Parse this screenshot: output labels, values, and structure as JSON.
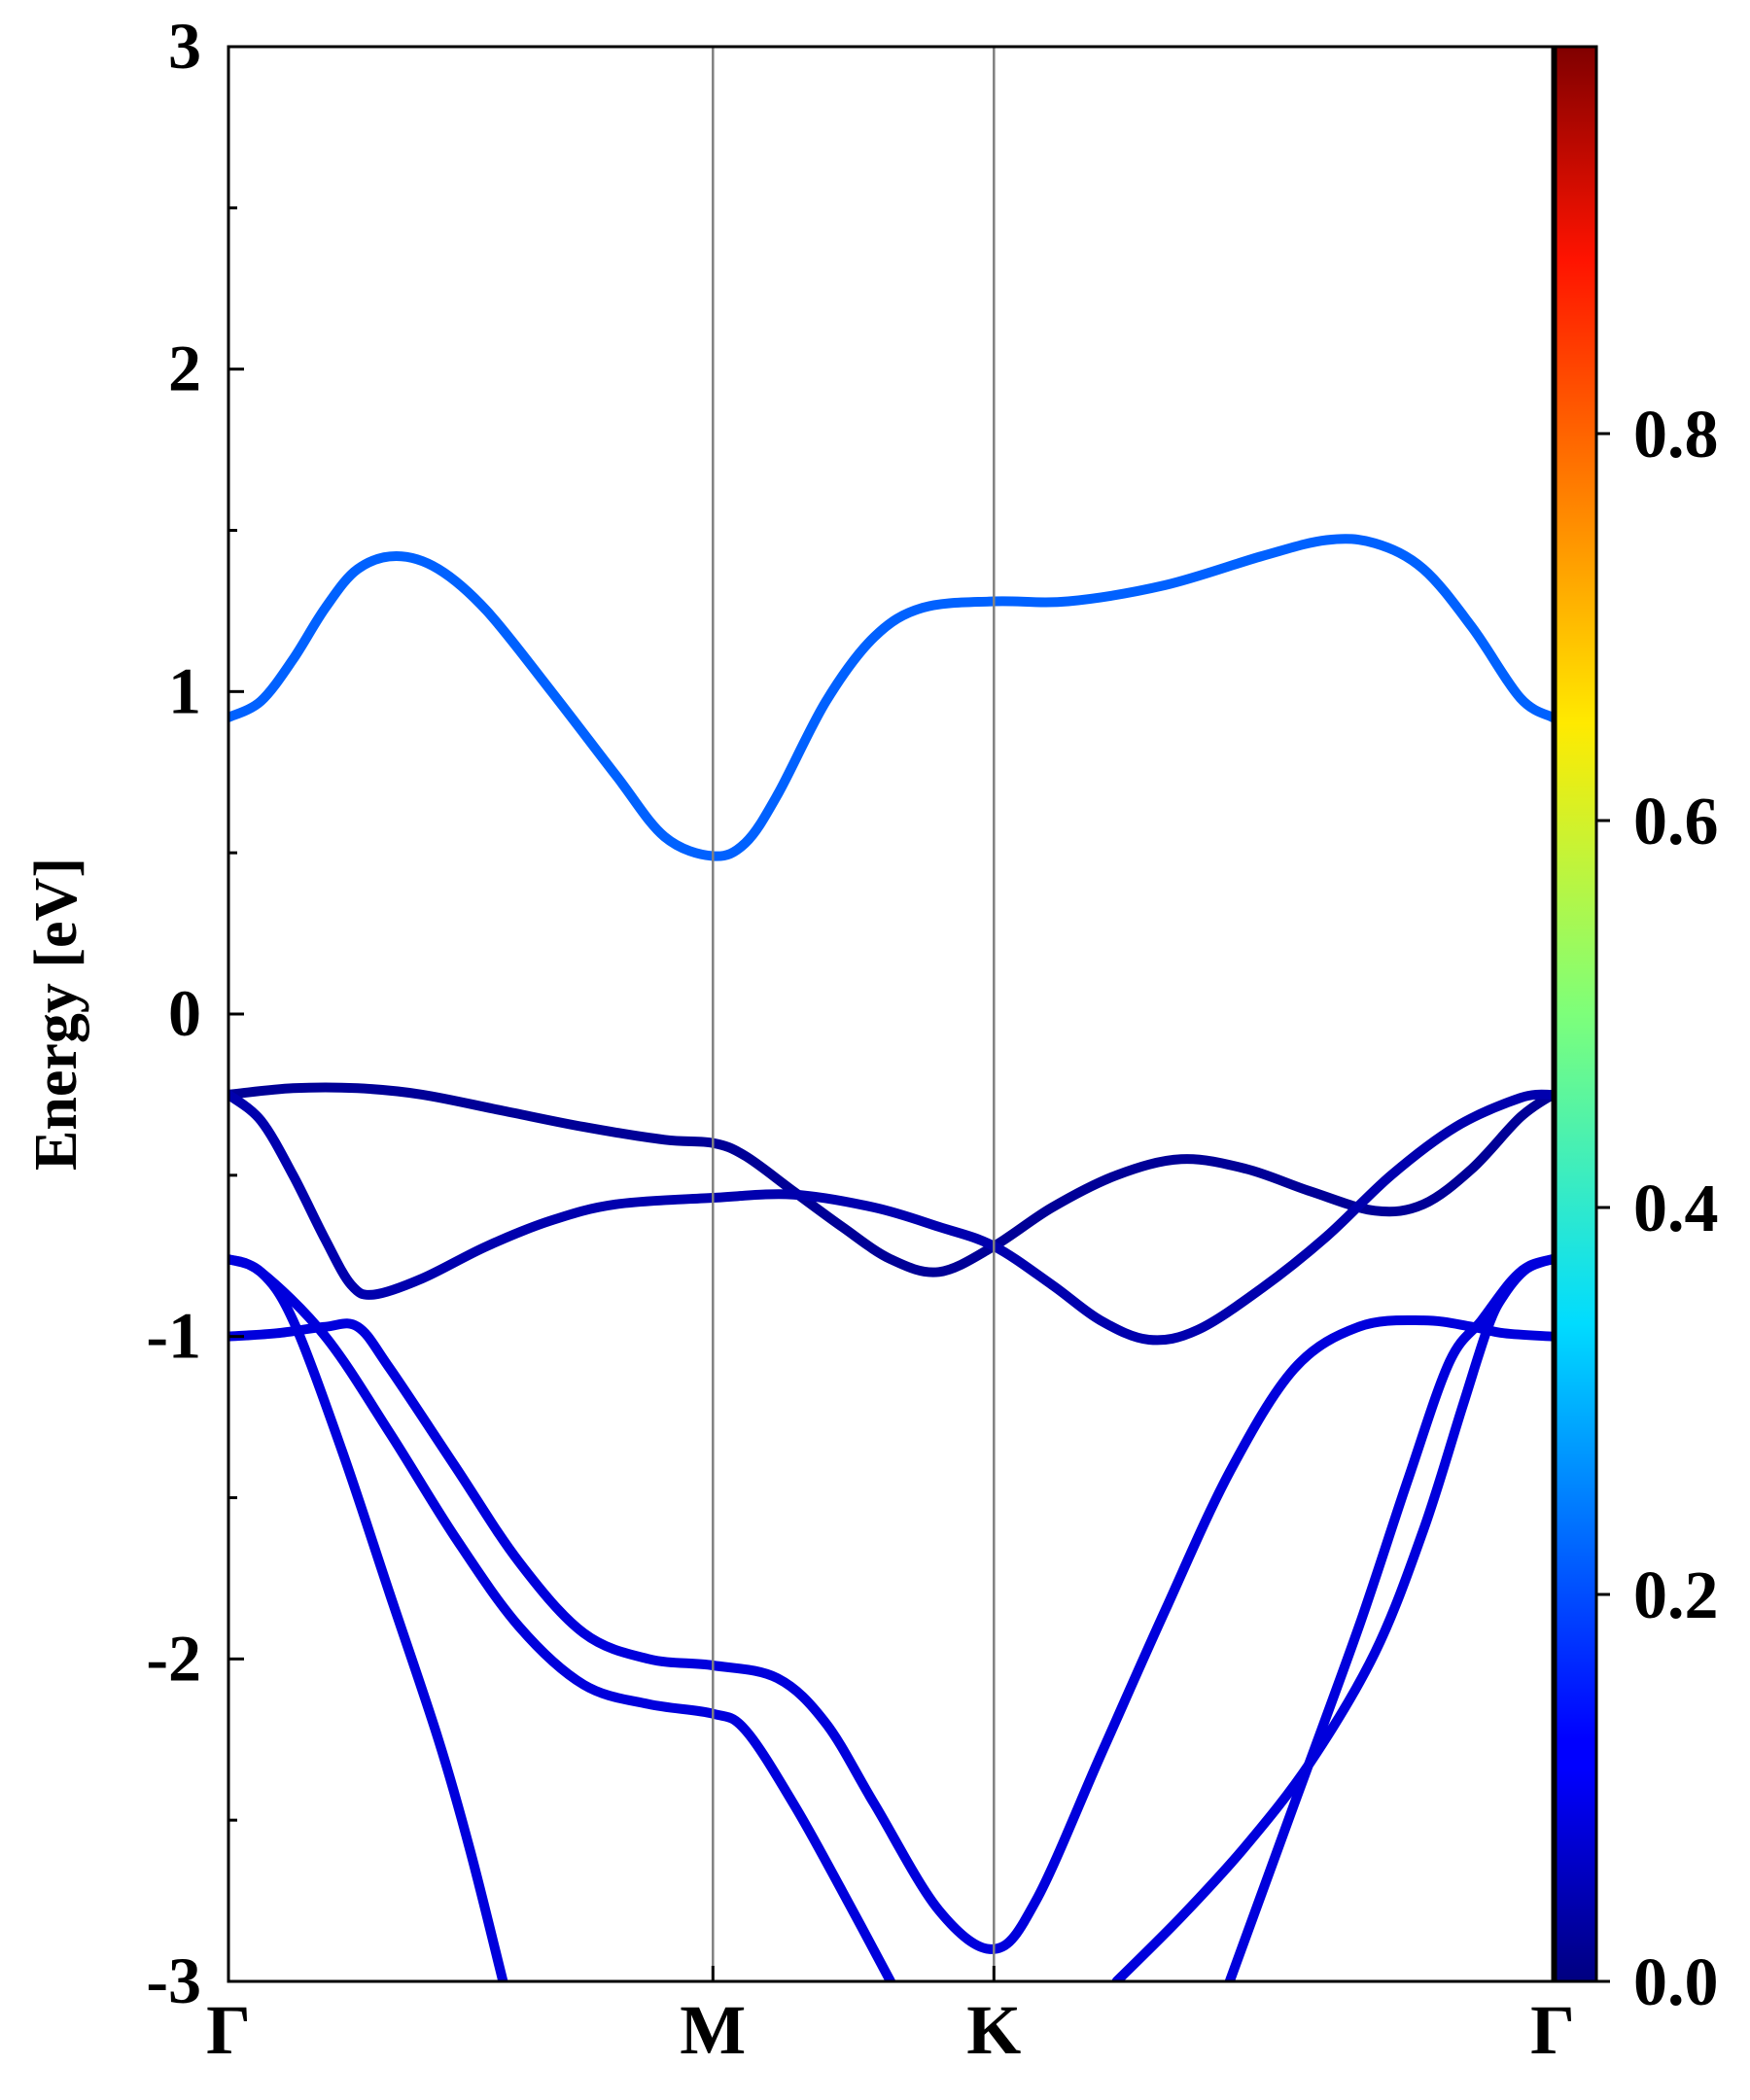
{
  "chart_data": {
    "type": "line",
    "title": "",
    "xlabel": "",
    "ylabel": "Energy [eV]",
    "ylim": [
      -3,
      3
    ],
    "y_ticks": [
      "-3",
      "-2",
      "-1",
      "0",
      "1",
      "2",
      "3"
    ],
    "x_ticks": [
      {
        "label": "Γ",
        "k": 0.0
      },
      {
        "label": "M",
        "k": 1.5
      },
      {
        "label": "K",
        "k": 2.37
      },
      {
        "label": "Γ",
        "k": 4.1
      }
    ],
    "xlim": [
      0,
      4.1
    ],
    "grid": false,
    "colorbar": {
      "colormap": "jet",
      "range": [
        0,
        1
      ],
      "tick_values": [
        0.0,
        0.2,
        0.4,
        0.6,
        0.8
      ],
      "tick_labels": [
        "0.0",
        "0.2",
        "0.4",
        "0.6",
        "0.8"
      ]
    },
    "series": [
      {
        "color_value": 0.22,
        "points": [
          [
            0,
            0.92
          ],
          [
            0.1,
            0.97
          ],
          [
            0.2,
            1.1
          ],
          [
            0.3,
            1.26
          ],
          [
            0.4,
            1.38
          ],
          [
            0.52,
            1.42
          ],
          [
            0.65,
            1.38
          ],
          [
            0.8,
            1.25
          ],
          [
            1.0,
            1.0
          ],
          [
            1.2,
            0.74
          ],
          [
            1.35,
            0.55
          ],
          [
            1.5,
            0.49
          ],
          [
            1.6,
            0.53
          ],
          [
            1.7,
            0.68
          ],
          [
            1.85,
            0.97
          ],
          [
            2.0,
            1.17
          ],
          [
            2.15,
            1.26
          ],
          [
            2.37,
            1.28
          ],
          [
            2.6,
            1.28
          ],
          [
            2.9,
            1.33
          ],
          [
            3.2,
            1.42
          ],
          [
            3.4,
            1.47
          ],
          [
            3.55,
            1.46
          ],
          [
            3.7,
            1.38
          ],
          [
            3.85,
            1.2
          ],
          [
            4.0,
            0.98
          ],
          [
            4.1,
            0.92
          ]
        ]
      },
      {
        "color_value": 0.02,
        "points": [
          [
            0,
            -0.25
          ],
          [
            0.2,
            -0.23
          ],
          [
            0.4,
            -0.23
          ],
          [
            0.6,
            -0.25
          ],
          [
            0.85,
            -0.3
          ],
          [
            1.1,
            -0.35
          ],
          [
            1.35,
            -0.39
          ],
          [
            1.5,
            -0.4
          ],
          [
            1.6,
            -0.44
          ],
          [
            1.75,
            -0.55
          ],
          [
            1.9,
            -0.66
          ],
          [
            2.05,
            -0.76
          ],
          [
            2.2,
            -0.8
          ],
          [
            2.37,
            -0.72
          ],
          [
            2.55,
            -0.6
          ],
          [
            2.75,
            -0.5
          ],
          [
            2.95,
            -0.45
          ],
          [
            3.15,
            -0.48
          ],
          [
            3.35,
            -0.55
          ],
          [
            3.55,
            -0.61
          ],
          [
            3.7,
            -0.59
          ],
          [
            3.85,
            -0.48
          ],
          [
            4.0,
            -0.32
          ],
          [
            4.1,
            -0.25
          ]
        ]
      },
      {
        "color_value": 0.04,
        "points": [
          [
            0,
            -0.25
          ],
          [
            0.1,
            -0.33
          ],
          [
            0.2,
            -0.5
          ],
          [
            0.3,
            -0.7
          ],
          [
            0.38,
            -0.84
          ],
          [
            0.45,
            -0.87
          ],
          [
            0.6,
            -0.82
          ],
          [
            0.8,
            -0.72
          ],
          [
            1.0,
            -0.64
          ],
          [
            1.2,
            -0.59
          ],
          [
            1.5,
            -0.57
          ],
          [
            1.75,
            -0.56
          ],
          [
            2.0,
            -0.6
          ],
          [
            2.2,
            -0.66
          ],
          [
            2.37,
            -0.72
          ],
          [
            2.55,
            -0.84
          ],
          [
            2.7,
            -0.95
          ],
          [
            2.85,
            -1.01
          ],
          [
            3.0,
            -0.98
          ],
          [
            3.2,
            -0.85
          ],
          [
            3.4,
            -0.69
          ],
          [
            3.6,
            -0.5
          ],
          [
            3.8,
            -0.35
          ],
          [
            4.0,
            -0.26
          ],
          [
            4.1,
            -0.25
          ]
        ]
      },
      {
        "color_value": 0.08,
        "points": [
          [
            0,
            -1.0
          ],
          [
            0.15,
            -0.99
          ],
          [
            0.3,
            -0.97
          ],
          [
            0.4,
            -0.97
          ],
          [
            0.5,
            -1.1
          ],
          [
            0.7,
            -1.4
          ],
          [
            0.9,
            -1.7
          ],
          [
            1.1,
            -1.92
          ],
          [
            1.3,
            -2.0
          ],
          [
            1.5,
            -2.02
          ],
          [
            1.7,
            -2.06
          ],
          [
            1.85,
            -2.2
          ],
          [
            2.0,
            -2.45
          ],
          [
            2.2,
            -2.78
          ],
          [
            2.37,
            -2.9
          ],
          [
            2.5,
            -2.75
          ],
          [
            2.7,
            -2.3
          ],
          [
            2.9,
            -1.85
          ],
          [
            3.1,
            -1.42
          ],
          [
            3.3,
            -1.1
          ],
          [
            3.5,
            -0.97
          ],
          [
            3.7,
            -0.95
          ],
          [
            3.85,
            -0.97
          ],
          [
            3.95,
            -0.99
          ],
          [
            4.1,
            -1.0
          ]
        ]
      },
      {
        "color_value": 0.08,
        "points": [
          [
            0,
            -0.76
          ],
          [
            0.1,
            -0.8
          ],
          [
            0.3,
            -1.0
          ],
          [
            0.5,
            -1.3
          ],
          [
            0.7,
            -1.62
          ],
          [
            0.9,
            -1.9
          ],
          [
            1.1,
            -2.08
          ],
          [
            1.3,
            -2.14
          ],
          [
            1.5,
            -2.17
          ],
          [
            1.6,
            -2.22
          ],
          [
            1.75,
            -2.45
          ],
          [
            1.9,
            -2.72
          ],
          [
            2.05,
            -3.0
          ]
        ]
      },
      {
        "color_value": 0.08,
        "points": [
          [
            0,
            -0.76
          ],
          [
            0.1,
            -0.8
          ],
          [
            0.2,
            -0.95
          ],
          [
            0.35,
            -1.35
          ],
          [
            0.5,
            -1.8
          ],
          [
            0.65,
            -2.25
          ],
          [
            0.75,
            -2.6
          ],
          [
            0.85,
            -3.0
          ]
        ]
      },
      {
        "color_value": 0.08,
        "points": [
          [
            2.75,
            -3.0
          ],
          [
            2.95,
            -2.8
          ],
          [
            3.15,
            -2.58
          ],
          [
            3.35,
            -2.32
          ],
          [
            3.55,
            -1.98
          ],
          [
            3.7,
            -1.6
          ],
          [
            3.82,
            -1.22
          ],
          [
            3.9,
            -0.97
          ],
          [
            3.95,
            -0.87
          ],
          [
            4.02,
            -0.79
          ],
          [
            4.1,
            -0.76
          ]
        ]
      },
      {
        "color_value": 0.08,
        "points": [
          [
            3.1,
            -3.0
          ],
          [
            3.3,
            -2.45
          ],
          [
            3.5,
            -1.9
          ],
          [
            3.65,
            -1.45
          ],
          [
            3.78,
            -1.08
          ],
          [
            3.88,
            -0.95
          ],
          [
            3.97,
            -0.83
          ],
          [
            4.03,
            -0.78
          ],
          [
            4.1,
            -0.76
          ]
        ]
      }
    ]
  }
}
